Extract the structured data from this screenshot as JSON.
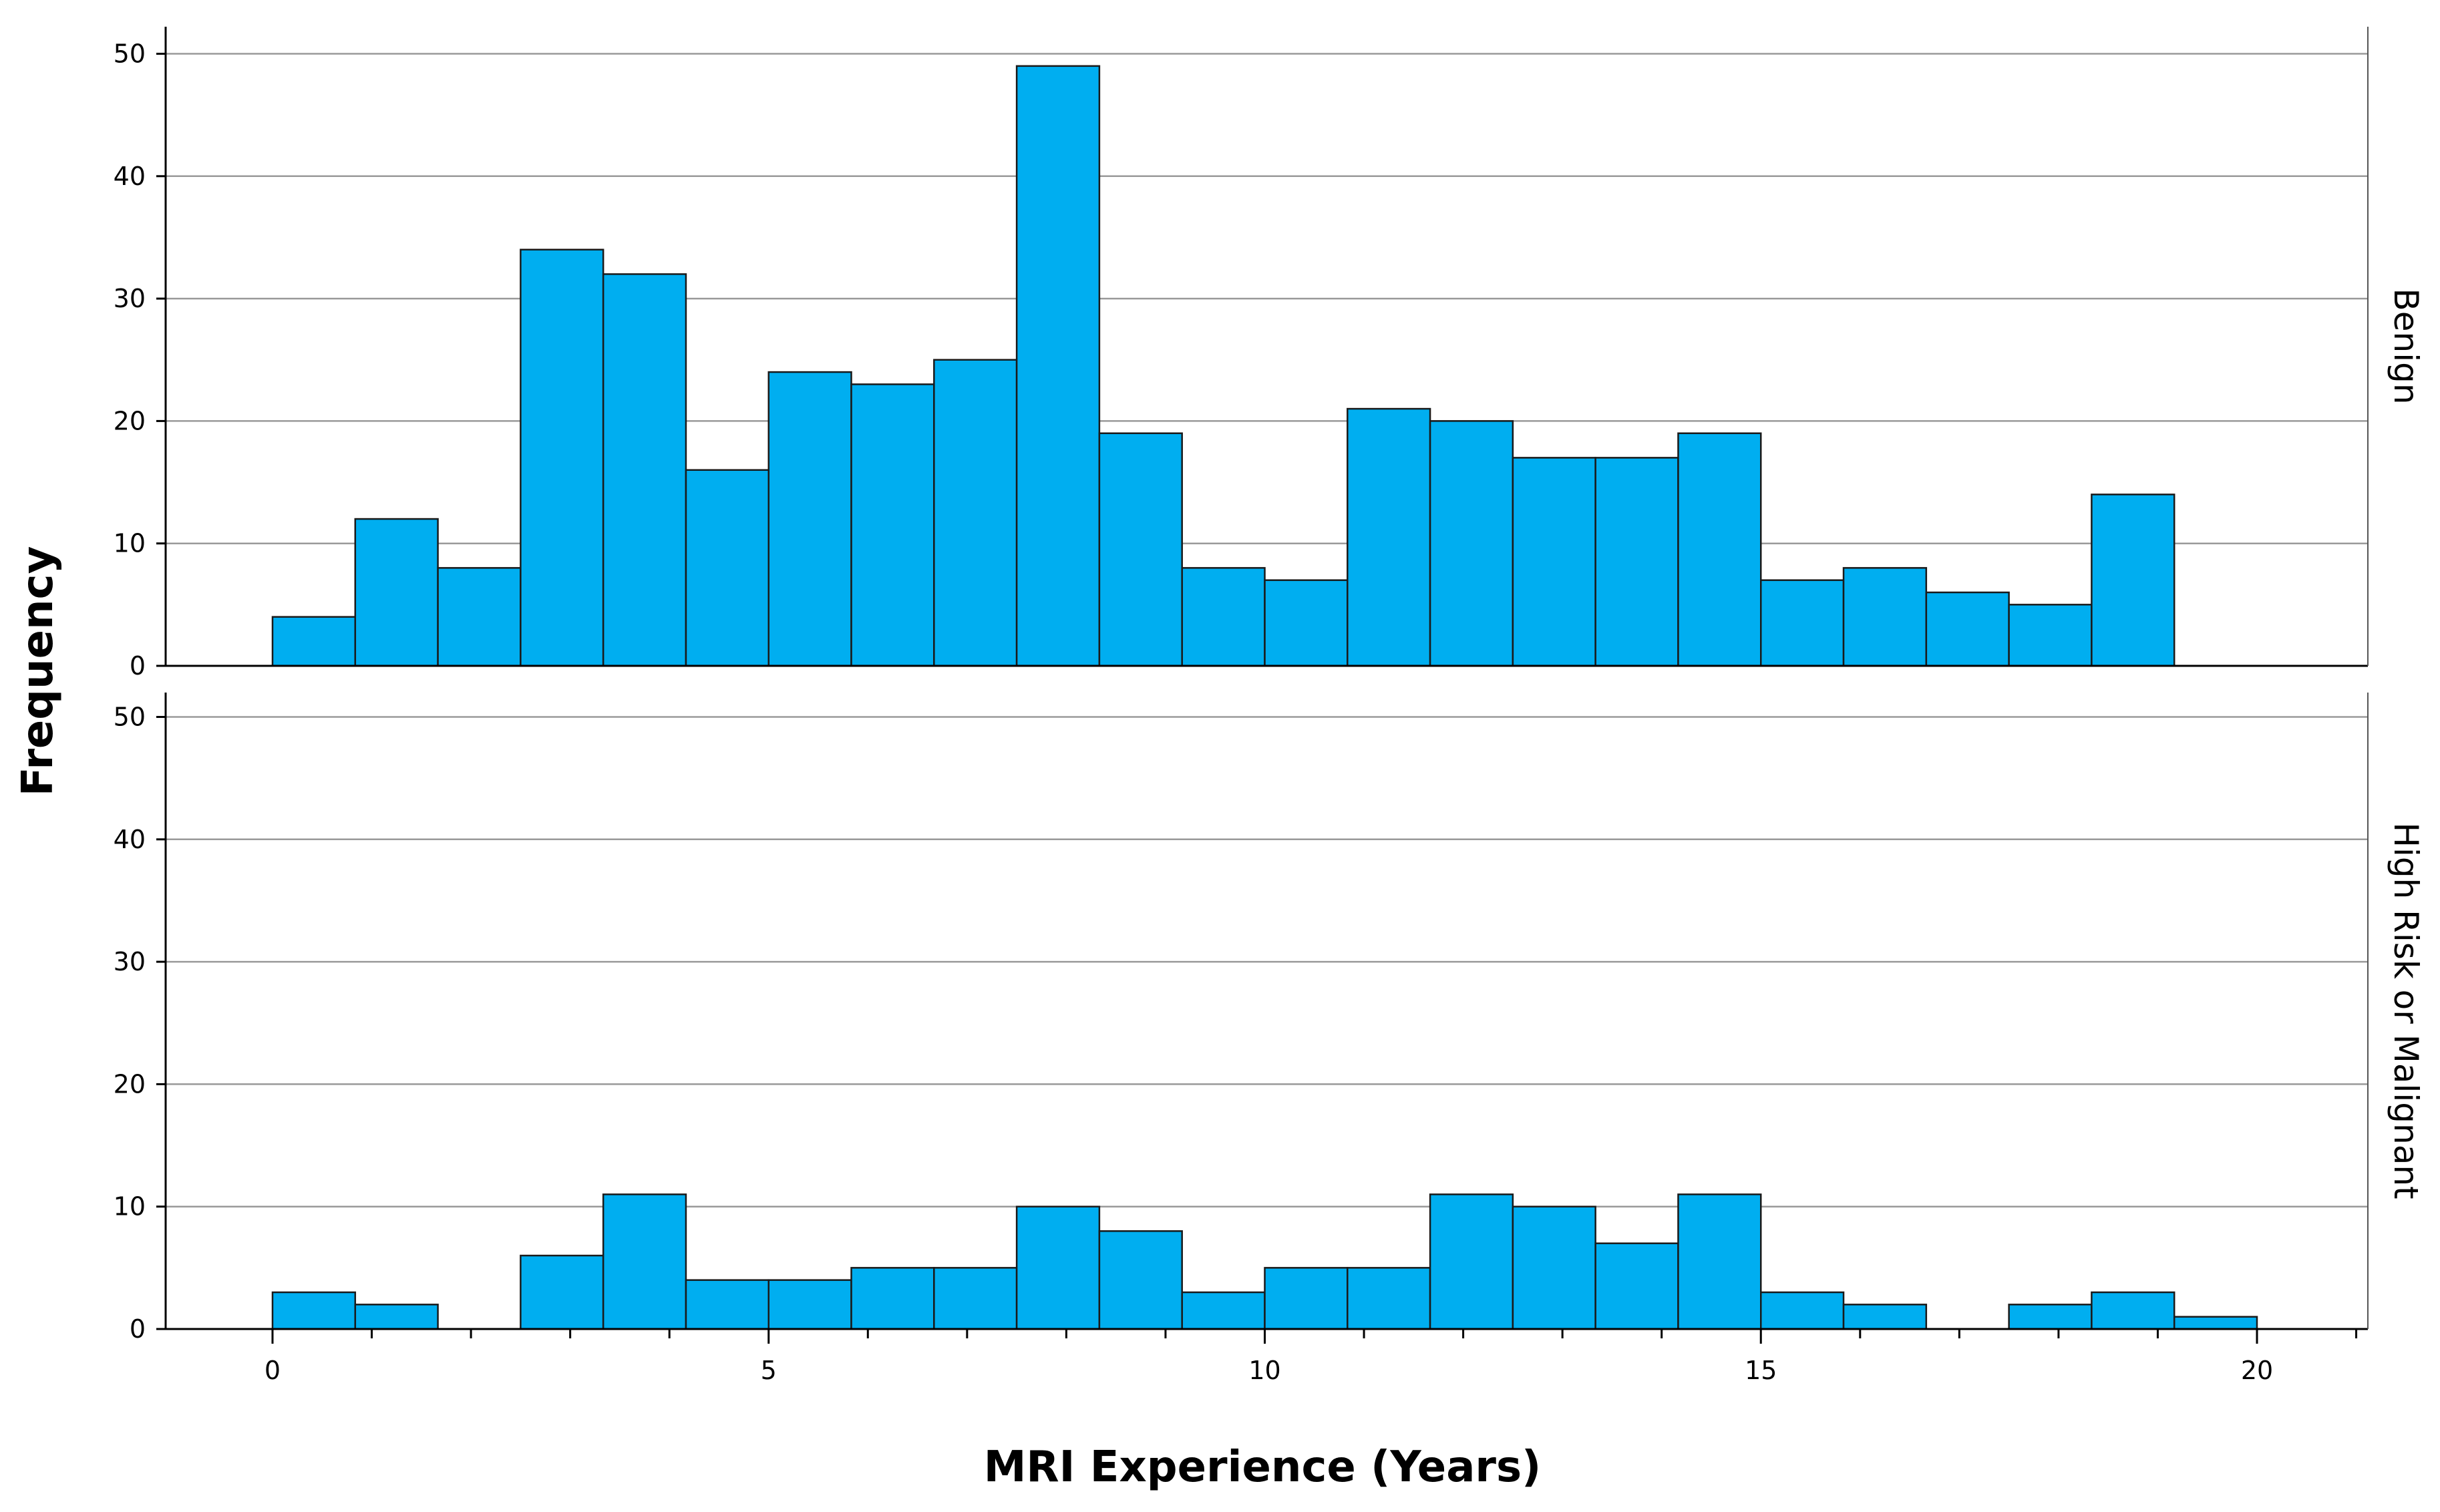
{
  "chart_data": {
    "type": "bar",
    "subtype": "faceted-histogram",
    "xlabel": "MRI Experience (Years)",
    "ylabel": "Frequency",
    "xlim": [
      -0.85,
      21.05
    ],
    "ylim": [
      0,
      52
    ],
    "x_ticks": [
      0,
      5,
      10,
      15,
      20
    ],
    "y_ticks": [
      0,
      10,
      20,
      30,
      40,
      50
    ],
    "bin_width": 0.8333,
    "bin_starts": [
      0,
      0.8333,
      1.6667,
      2.5,
      3.3333,
      4.1667,
      5,
      5.8333,
      6.6667,
      7.5,
      8.3333,
      9.1667,
      10,
      10.8333,
      11.6667,
      12.5,
      13.3333,
      14.1667,
      15,
      15.8333,
      16.6667,
      17.5,
      18.3333,
      19.1667
    ],
    "grid": true,
    "bar_color": "#00aef0",
    "panels": [
      {
        "label": "Benign",
        "values": [
          4,
          12,
          8,
          34,
          32,
          16,
          24,
          23,
          25,
          49,
          19,
          8,
          7,
          21,
          20,
          17,
          17,
          19,
          7,
          8,
          6,
          5,
          14,
          0
        ]
      },
      {
        "label": "High Risk or Malignant",
        "values": [
          3,
          2,
          0,
          6,
          11,
          4,
          4,
          5,
          5,
          10,
          8,
          3,
          5,
          5,
          11,
          10,
          7,
          11,
          3,
          2,
          0,
          2,
          3,
          1
        ]
      }
    ]
  }
}
